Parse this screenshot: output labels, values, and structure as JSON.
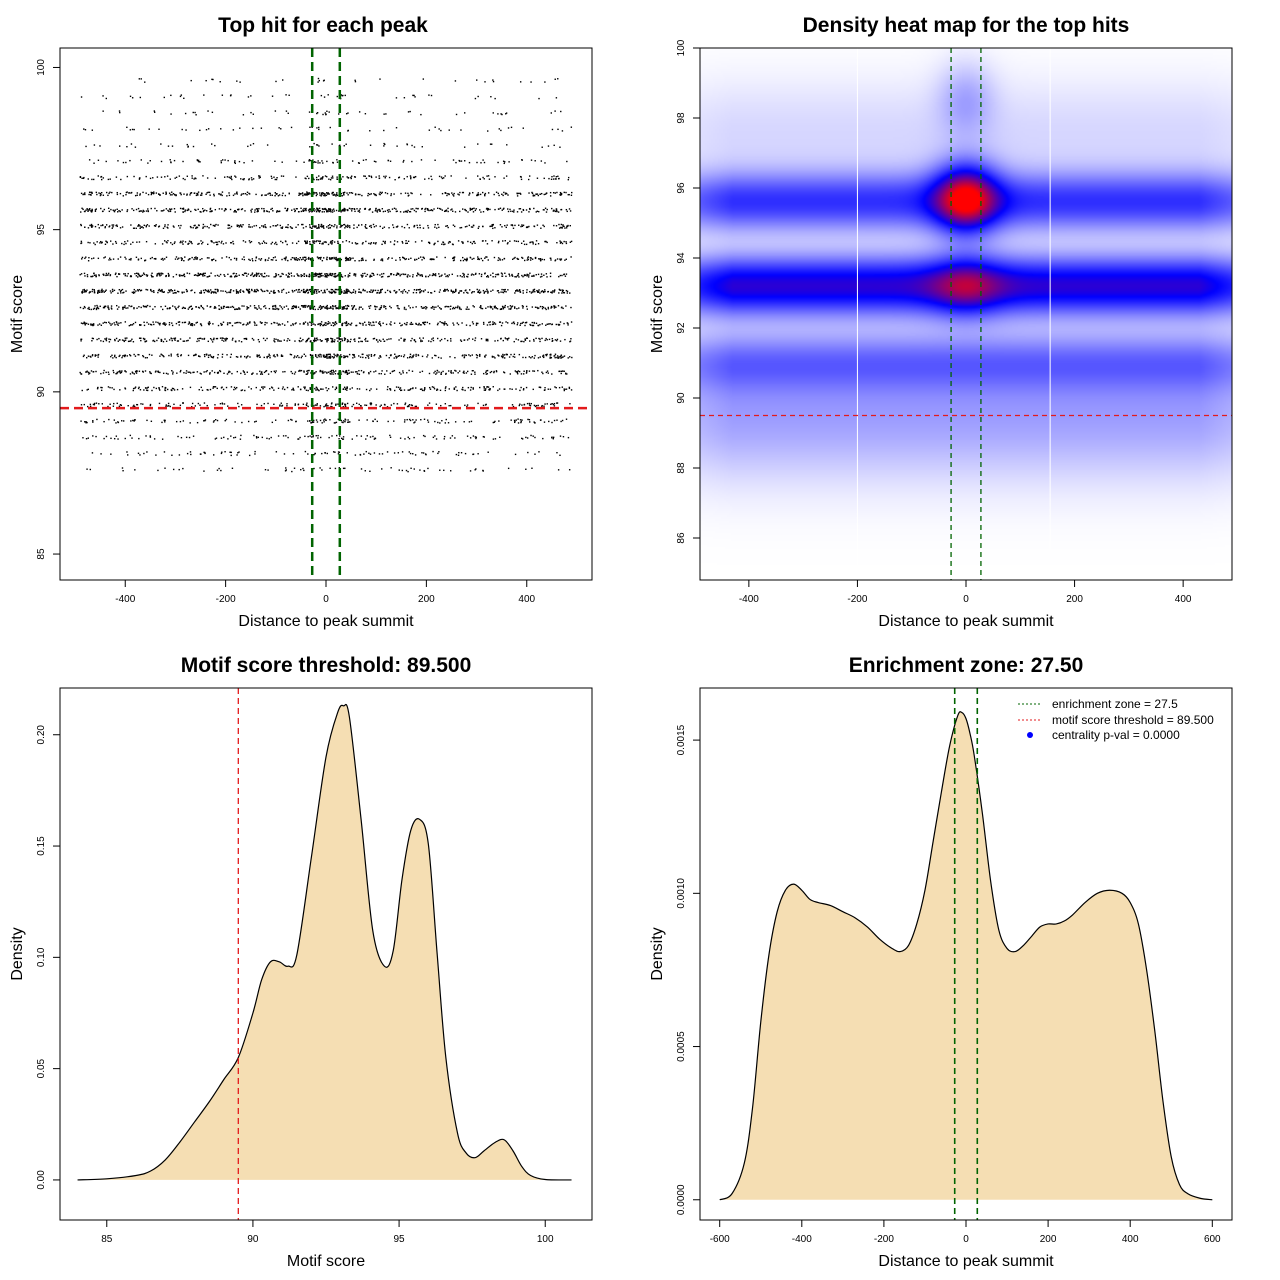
{
  "colors": {
    "density_fill": "#f5deb3",
    "threshold_line": "#e31a1c",
    "zone_line": "#006400",
    "heat_low": "#ffffff",
    "heat_mid": "#0000ff",
    "heat_high": "#ff0000",
    "centrality_dot": "#0000ff"
  },
  "chart_data": [
    {
      "type": "scatter",
      "title": "Top hit for each peak",
      "xlabel": "Distance to peak summit",
      "ylabel": "Motif score",
      "xlim": [
        -530,
        530
      ],
      "ylim": [
        84.2,
        100.6
      ],
      "xticks": [
        -400,
        -200,
        0,
        200,
        400
      ],
      "yticks": [
        85,
        90,
        95,
        100
      ],
      "grid": false,
      "points": {
        "x_range": [
          -490,
          490
        ],
        "score_levels": [
          {
            "score": 87.6,
            "weight": 1.0
          },
          {
            "score": 88.1,
            "weight": 1.5
          },
          {
            "score": 88.6,
            "weight": 2.0
          },
          {
            "score": 89.1,
            "weight": 2.5
          },
          {
            "score": 89.6,
            "weight": 3.0
          },
          {
            "score": 90.1,
            "weight": 4.0
          },
          {
            "score": 90.6,
            "weight": 5.0
          },
          {
            "score": 91.1,
            "weight": 5.5
          },
          {
            "score": 91.6,
            "weight": 5.0
          },
          {
            "score": 92.1,
            "weight": 5.5
          },
          {
            "score": 92.6,
            "weight": 6.5
          },
          {
            "score": 93.1,
            "weight": 8.0
          },
          {
            "score": 93.6,
            "weight": 7.0
          },
          {
            "score": 94.1,
            "weight": 5.0
          },
          {
            "score": 94.6,
            "weight": 4.0
          },
          {
            "score": 95.1,
            "weight": 5.0
          },
          {
            "score": 95.6,
            "weight": 6.5
          },
          {
            "score": 96.1,
            "weight": 5.5
          },
          {
            "score": 96.6,
            "weight": 3.0
          },
          {
            "score": 97.1,
            "weight": 1.5
          },
          {
            "score": 97.6,
            "weight": 0.8
          },
          {
            "score": 98.1,
            "weight": 0.8
          },
          {
            "score": 98.6,
            "weight": 0.8
          },
          {
            "score": 99.1,
            "weight": 0.7
          },
          {
            "score": 99.6,
            "weight": 0.5
          }
        ]
      },
      "hlines": [
        {
          "y": 89.5,
          "color": "red"
        }
      ],
      "vlines": [
        {
          "x": -27.5,
          "color": "darkgreen"
        },
        {
          "x": 27.5,
          "color": "darkgreen"
        }
      ]
    },
    {
      "type": "heatmap",
      "title": "Density heat map for the top hits",
      "xlabel": "Distance to peak summit",
      "ylabel": "Motif score",
      "xlim": [
        -490,
        490
      ],
      "ylim": [
        84.8,
        100
      ],
      "xticks": [
        -400,
        -200,
        0,
        200,
        400
      ],
      "yticks": [
        86,
        88,
        90,
        92,
        94,
        96,
        98,
        100
      ],
      "grid": false,
      "density_bands": [
        {
          "y": 93.2,
          "y_sd": 0.55,
          "amplitude": 0.58
        },
        {
          "y": 95.6,
          "y_sd": 0.55,
          "amplitude": 0.38
        },
        {
          "y": 91.0,
          "y_sd": 0.55,
          "amplitude": 0.22
        },
        {
          "y": 89.6,
          "y_sd": 1.2,
          "amplitude": 0.15
        },
        {
          "y": 97.5,
          "y_sd": 1.0,
          "amplitude": 0.05
        }
      ],
      "density_hotspots": [
        {
          "x": 0,
          "y": 95.7,
          "x_sd": 40,
          "y_sd": 0.65,
          "amplitude": 0.75
        },
        {
          "x": 0,
          "y": 93.2,
          "x_sd": 45,
          "y_sd": 0.6,
          "amplitude": 0.3
        },
        {
          "x": 0,
          "y": 98.5,
          "x_sd": 35,
          "y_sd": 0.7,
          "amplitude": 0.12
        }
      ],
      "hlines": [
        {
          "y": 89.5,
          "color": "red"
        }
      ],
      "vlines": [
        {
          "x": -27.5,
          "color": "darkgreen"
        },
        {
          "x": 27.5,
          "color": "darkgreen"
        },
        {
          "x": -200,
          "color": "white"
        },
        {
          "x": 155,
          "color": "white"
        }
      ]
    },
    {
      "type": "area",
      "title": "Motif score threshold: 89.500",
      "xlabel": "Motif score",
      "ylabel": "Density",
      "xlim": [
        83.4,
        101.6
      ],
      "ylim": [
        -0.018,
        0.221
      ],
      "xticks": [
        85,
        90,
        95,
        100
      ],
      "yticks": [
        0.0,
        0.05,
        0.1,
        0.15,
        0.2
      ],
      "ytick_labels": [
        "0.00",
        "0.05",
        "0.10",
        "0.15",
        "0.20"
      ],
      "grid": false,
      "x": [
        84.0,
        85.0,
        86.0,
        86.5,
        87.0,
        87.5,
        88.0,
        88.5,
        89.0,
        89.5,
        90.0,
        90.3,
        90.6,
        90.9,
        91.2,
        91.5,
        92.0,
        92.5,
        92.9,
        93.1,
        93.3,
        93.7,
        94.1,
        94.5,
        94.8,
        95.1,
        95.4,
        95.7,
        96.0,
        96.3,
        96.6,
        97.0,
        97.3,
        97.6,
        97.9,
        98.3,
        98.6,
        98.9,
        99.2,
        99.5,
        100.0,
        100.9
      ],
      "y": [
        0.0,
        0.0005,
        0.002,
        0.004,
        0.009,
        0.017,
        0.026,
        0.035,
        0.045,
        0.055,
        0.075,
        0.09,
        0.098,
        0.098,
        0.096,
        0.101,
        0.145,
        0.19,
        0.21,
        0.213,
        0.208,
        0.162,
        0.112,
        0.096,
        0.103,
        0.135,
        0.157,
        0.162,
        0.151,
        0.102,
        0.055,
        0.021,
        0.012,
        0.01,
        0.013,
        0.017,
        0.018,
        0.013,
        0.006,
        0.002,
        0.0002,
        0.0
      ],
      "vlines": [
        {
          "x": 89.5,
          "color": "red"
        }
      ]
    },
    {
      "type": "area",
      "title": "Enrichment zone: 27.50",
      "xlabel": "Distance to peak summit",
      "ylabel": "Density",
      "xlim": [
        -648,
        648
      ],
      "ylim": [
        -6.6e-05,
        0.00167
      ],
      "xticks": [
        -600,
        -400,
        -200,
        0,
        200,
        400,
        600
      ],
      "yticks": [
        0.0,
        0.0005,
        0.001,
        0.0015
      ],
      "ytick_labels": [
        "0.0000",
        "0.0005",
        "0.0010",
        "0.0015"
      ],
      "grid": false,
      "x": [
        -600,
        -570,
        -540,
        -520,
        -500,
        -480,
        -460,
        -440,
        -420,
        -400,
        -380,
        -360,
        -330,
        -300,
        -270,
        -240,
        -210,
        -180,
        -160,
        -140,
        -120,
        -100,
        -80,
        -60,
        -40,
        -20,
        -10,
        0,
        10,
        20,
        40,
        60,
        80,
        100,
        120,
        140,
        160,
        180,
        200,
        220,
        240,
        260,
        290,
        320,
        350,
        380,
        400,
        420,
        440,
        460,
        480,
        500,
        520,
        540,
        570,
        600
      ],
      "y": [
        0.0,
        2e-05,
        0.00012,
        0.0003,
        0.00058,
        0.0008,
        0.00094,
        0.00101,
        0.00103,
        0.00101,
        0.00098,
        0.00097,
        0.00096,
        0.00094,
        0.00092,
        0.00089,
        0.00085,
        0.00082,
        0.00081,
        0.00083,
        0.0009,
        0.00101,
        0.00117,
        0.00133,
        0.00148,
        0.00158,
        0.00159,
        0.00157,
        0.00152,
        0.00145,
        0.00126,
        0.00104,
        0.00088,
        0.00082,
        0.00081,
        0.00083,
        0.00086,
        0.00089,
        0.0009,
        0.0009,
        0.00091,
        0.00093,
        0.00097,
        0.001,
        0.00101,
        0.001,
        0.00097,
        0.0009,
        0.00075,
        0.00055,
        0.00032,
        0.00014,
        5e-05,
        2e-05,
        5e-06,
        0.0
      ],
      "vlines": [
        {
          "x": -27.5,
          "color": "darkgreen"
        },
        {
          "x": 27.5,
          "color": "darkgreen"
        }
      ],
      "legend": {
        "placement": "top-right",
        "entries": [
          {
            "label": "enrichment zone = 27.5",
            "style": "dotted-line",
            "color": "darkgreen"
          },
          {
            "label": "motif score threshold = 89.500",
            "style": "dotted-line",
            "color": "red"
          },
          {
            "label": "centrality p-val = 0.0000",
            "style": "dot",
            "color": "blue"
          }
        ]
      }
    }
  ]
}
